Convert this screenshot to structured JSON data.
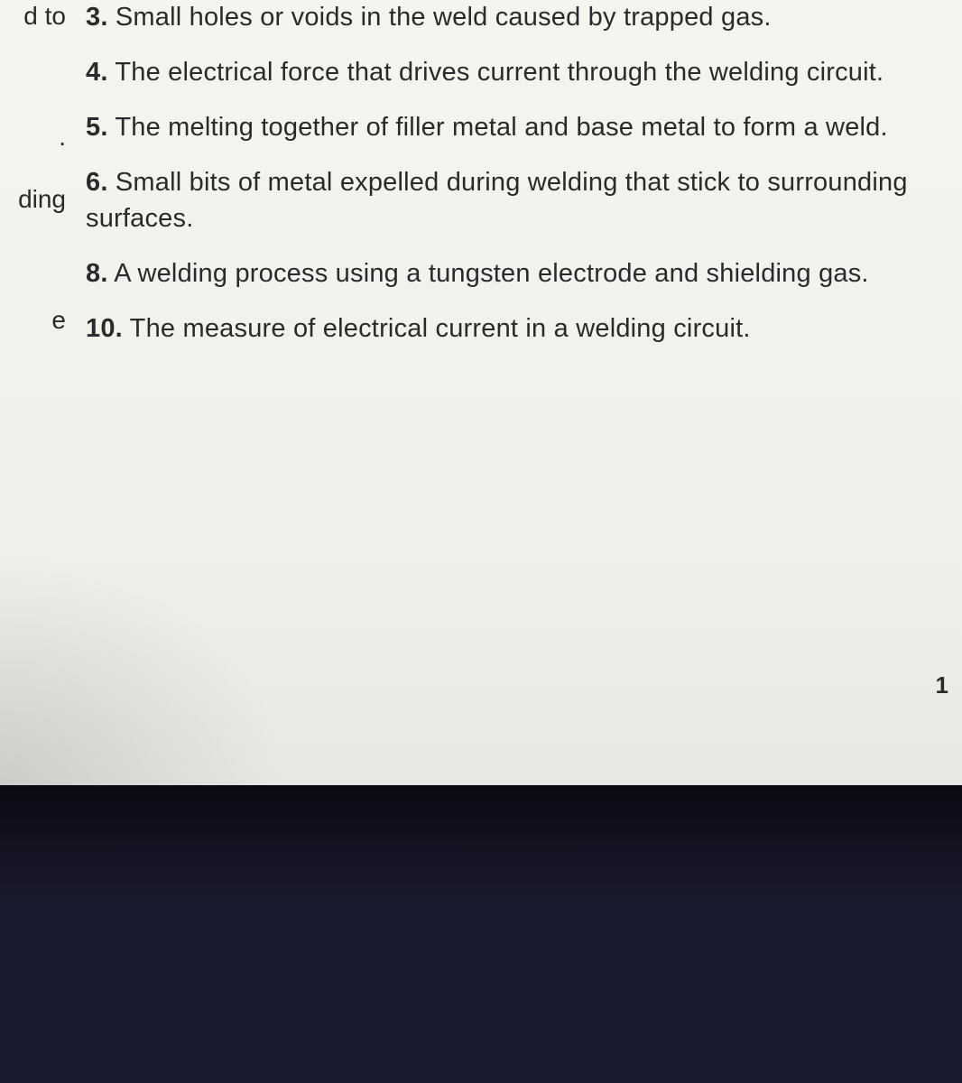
{
  "left_fragments": {
    "item1": "d to",
    "item2": ".",
    "item3": "ding",
    "item4": "e"
  },
  "clues": {
    "c3": {
      "num": "3.",
      "text": "Small holes or voids in the weld caused by trapped gas."
    },
    "c4": {
      "num": "4.",
      "text": "The electrical force that drives current through the welding circuit."
    },
    "c5": {
      "num": "5.",
      "text": "The melting together of filler metal and base metal to form a weld."
    },
    "c6": {
      "num": "6.",
      "text": "Small bits of metal expelled during welding that stick to surrounding surfaces."
    },
    "c8": {
      "num": "8.",
      "text": "A welding process using a tungsten electrode and shielding gas."
    },
    "c10": {
      "num": "10.",
      "text": "The measure of electrical current in a welding circuit."
    }
  },
  "page_number_fragment": "1",
  "colors": {
    "text": "#2a2a2a",
    "paper_bg": "#f5f5f0",
    "dark_bg": "#1a1a2e"
  },
  "typography": {
    "body_fontsize_pt": 22,
    "font_family": "Arial"
  }
}
